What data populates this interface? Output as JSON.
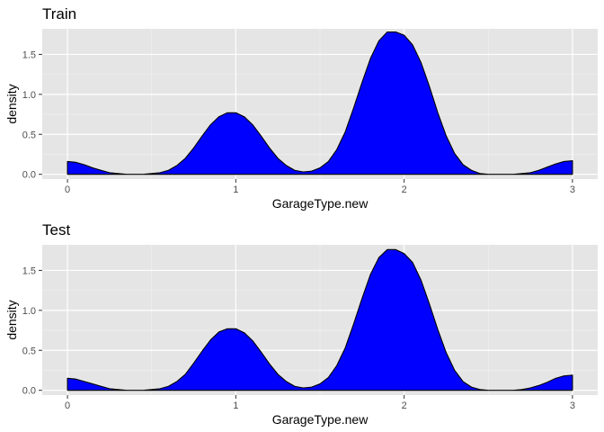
{
  "chart_data": [
    {
      "type": "area",
      "title": "Train",
      "xlabel": "GarageType.new",
      "ylabel": "density",
      "xlim": [
        -0.15,
        3.15
      ],
      "ylim": [
        -0.06,
        1.82
      ],
      "xticks": [
        {
          "value": 0,
          "label": "0"
        },
        {
          "value": 1,
          "label": "1"
        },
        {
          "value": 2,
          "label": "2"
        },
        {
          "value": 3,
          "label": "3"
        }
      ],
      "yticks": [
        {
          "value": 0.0,
          "label": "0.0"
        },
        {
          "value": 0.5,
          "label": "0.5"
        },
        {
          "value": 1.0,
          "label": "1.0"
        },
        {
          "value": 1.5,
          "label": "1.5"
        }
      ],
      "grid": true,
      "fill_color": "#0000ff",
      "line_color": "#000000",
      "panel_background": "#e5e5e5",
      "series": [
        {
          "x": [
            0,
            0.05,
            0.1,
            0.15,
            0.2,
            0.25,
            0.3,
            0.35,
            0.4,
            0.45,
            0.5,
            0.55,
            0.6,
            0.65,
            0.7,
            0.75,
            0.8,
            0.85,
            0.9,
            0.95,
            1.0,
            1.05,
            1.1,
            1.15,
            1.2,
            1.25,
            1.3,
            1.35,
            1.4,
            1.45,
            1.5,
            1.55,
            1.6,
            1.65,
            1.7,
            1.75,
            1.8,
            1.85,
            1.9,
            1.95,
            2.0,
            2.05,
            2.1,
            2.15,
            2.2,
            2.25,
            2.3,
            2.35,
            2.4,
            2.45,
            2.5,
            2.55,
            2.6,
            2.65,
            2.7,
            2.75,
            2.8,
            2.85,
            2.9,
            2.95,
            3.0
          ],
          "y": [
            0.16,
            0.15,
            0.12,
            0.08,
            0.05,
            0.02,
            0.01,
            0.0,
            0.0,
            0.0,
            0.01,
            0.02,
            0.05,
            0.11,
            0.2,
            0.33,
            0.48,
            0.62,
            0.72,
            0.77,
            0.77,
            0.72,
            0.62,
            0.48,
            0.33,
            0.2,
            0.11,
            0.05,
            0.03,
            0.04,
            0.08,
            0.16,
            0.31,
            0.53,
            0.83,
            1.15,
            1.45,
            1.67,
            1.78,
            1.78,
            1.74,
            1.62,
            1.4,
            1.1,
            0.77,
            0.48,
            0.26,
            0.12,
            0.05,
            0.01,
            0.0,
            0.0,
            0.0,
            0.0,
            0.01,
            0.02,
            0.05,
            0.09,
            0.13,
            0.16,
            0.17
          ]
        }
      ]
    },
    {
      "type": "area",
      "title": "Test",
      "xlabel": "GarageType.new",
      "ylabel": "density",
      "xlim": [
        -0.15,
        3.15
      ],
      "ylim": [
        -0.06,
        1.82
      ],
      "xticks": [
        {
          "value": 0,
          "label": "0"
        },
        {
          "value": 1,
          "label": "1"
        },
        {
          "value": 2,
          "label": "2"
        },
        {
          "value": 3,
          "label": "3"
        }
      ],
      "yticks": [
        {
          "value": 0.0,
          "label": "0.0"
        },
        {
          "value": 0.5,
          "label": "0.5"
        },
        {
          "value": 1.0,
          "label": "1.0"
        },
        {
          "value": 1.5,
          "label": "1.5"
        }
      ],
      "grid": true,
      "fill_color": "#0000ff",
      "line_color": "#000000",
      "panel_background": "#e5e5e5",
      "series": [
        {
          "x": [
            0,
            0.05,
            0.1,
            0.15,
            0.2,
            0.25,
            0.3,
            0.35,
            0.4,
            0.45,
            0.5,
            0.55,
            0.6,
            0.65,
            0.7,
            0.75,
            0.8,
            0.85,
            0.9,
            0.95,
            1.0,
            1.05,
            1.1,
            1.15,
            1.2,
            1.25,
            1.3,
            1.35,
            1.4,
            1.45,
            1.5,
            1.55,
            1.6,
            1.65,
            1.7,
            1.75,
            1.8,
            1.85,
            1.9,
            1.95,
            2.0,
            2.05,
            2.1,
            2.15,
            2.2,
            2.25,
            2.3,
            2.35,
            2.4,
            2.45,
            2.5,
            2.55,
            2.6,
            2.65,
            2.7,
            2.75,
            2.8,
            2.85,
            2.9,
            2.95,
            3.0
          ],
          "y": [
            0.15,
            0.14,
            0.11,
            0.08,
            0.05,
            0.02,
            0.01,
            0.0,
            0.0,
            0.0,
            0.01,
            0.02,
            0.05,
            0.11,
            0.2,
            0.34,
            0.49,
            0.63,
            0.73,
            0.77,
            0.77,
            0.72,
            0.62,
            0.48,
            0.33,
            0.2,
            0.11,
            0.05,
            0.03,
            0.04,
            0.08,
            0.16,
            0.31,
            0.53,
            0.83,
            1.15,
            1.45,
            1.66,
            1.76,
            1.76,
            1.71,
            1.6,
            1.38,
            1.08,
            0.76,
            0.47,
            0.25,
            0.11,
            0.04,
            0.01,
            0.0,
            0.0,
            0.0,
            0.0,
            0.01,
            0.03,
            0.06,
            0.1,
            0.15,
            0.18,
            0.19
          ]
        }
      ]
    }
  ]
}
